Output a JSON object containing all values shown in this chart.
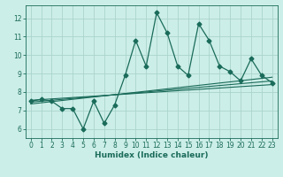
{
  "xlabel": "Humidex (Indice chaleur)",
  "background_color": "#cceee8",
  "line_color": "#1a6b5a",
  "grid_color": "#aad4cc",
  "xlim": [
    -0.5,
    23.5
  ],
  "ylim": [
    5.5,
    12.7
  ],
  "xticks": [
    0,
    1,
    2,
    3,
    4,
    5,
    6,
    7,
    8,
    9,
    10,
    11,
    12,
    13,
    14,
    15,
    16,
    17,
    18,
    19,
    20,
    21,
    22,
    23
  ],
  "yticks": [
    6,
    7,
    8,
    9,
    10,
    11,
    12
  ],
  "data_x": [
    0,
    1,
    2,
    3,
    4,
    5,
    6,
    7,
    8,
    9,
    10,
    11,
    12,
    13,
    14,
    15,
    16,
    17,
    18,
    19,
    20,
    21,
    22,
    23
  ],
  "data_y": [
    7.5,
    7.6,
    7.5,
    7.1,
    7.1,
    6.0,
    7.5,
    6.3,
    7.3,
    8.9,
    10.8,
    9.4,
    12.3,
    11.2,
    9.4,
    8.9,
    11.7,
    10.8,
    9.4,
    9.1,
    8.6,
    9.8,
    8.9,
    8.5
  ],
  "trend_lines": [
    [
      7.45,
      8.6
    ],
    [
      7.35,
      8.8
    ],
    [
      7.55,
      8.4
    ]
  ],
  "tick_fontsize": 5.5,
  "xlabel_fontsize": 6.5
}
